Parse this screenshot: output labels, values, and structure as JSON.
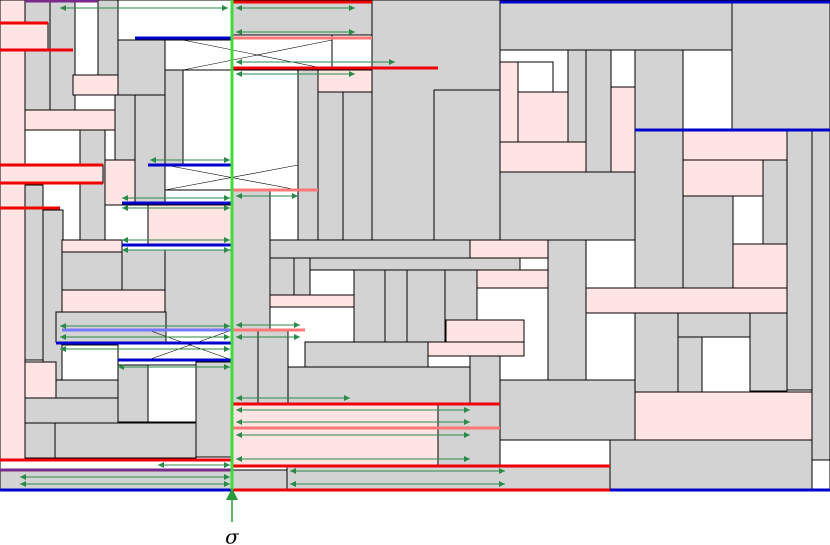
{
  "axis_label": "σ"
}
